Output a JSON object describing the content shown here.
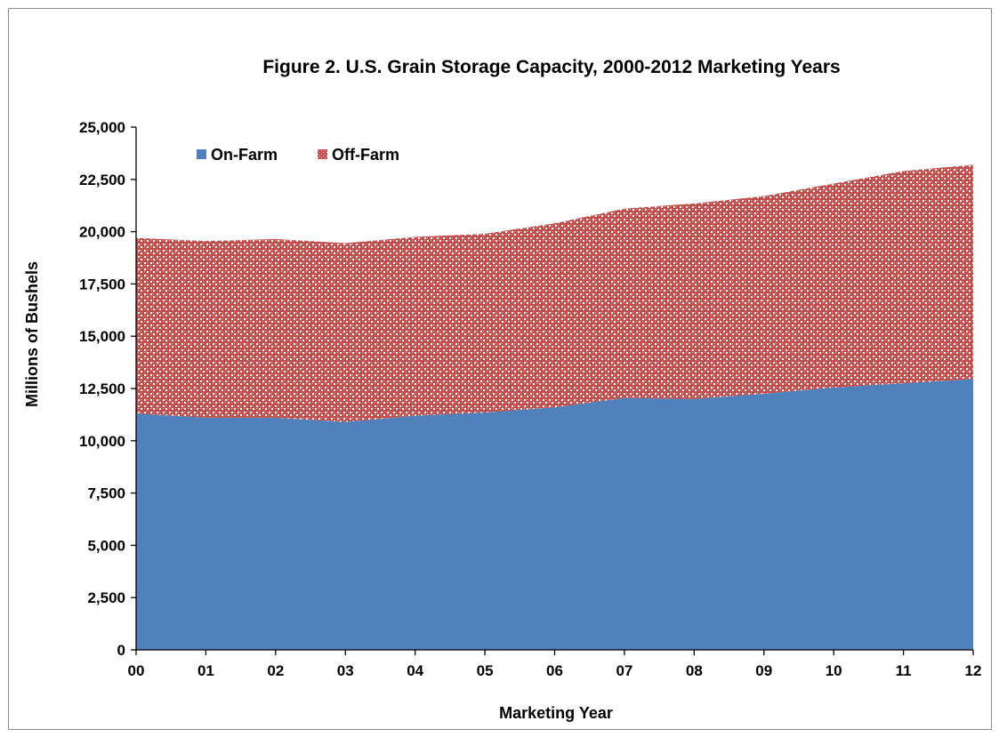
{
  "chart_data": {
    "type": "area",
    "stacked": true,
    "title": "Figure 2. U.S. Grain Storage Capacity, 2000-2012 Marketing Years",
    "xlabel": "Marketing Year",
    "ylabel": "Millions of Bushels",
    "categories": [
      "00",
      "01",
      "02",
      "03",
      "04",
      "05",
      "06",
      "07",
      "08",
      "09",
      "10",
      "11",
      "12"
    ],
    "ylim": [
      0,
      25000
    ],
    "yticks": [
      0,
      2500,
      5000,
      7500,
      10000,
      12500,
      15000,
      17500,
      20000,
      22500,
      25000
    ],
    "ytick_labels": [
      "0",
      "2,500",
      "5,000",
      "7,500",
      "10,000",
      "12,500",
      "15,000",
      "17,500",
      "20,000",
      "22,500",
      "25,000"
    ],
    "grid": false,
    "legend_position": "top-left",
    "series": [
      {
        "name": "On-Farm",
        "color": "#4f81bd",
        "pattern": "solid",
        "values": [
          11300,
          11100,
          11100,
          10900,
          11200,
          11350,
          11600,
          12050,
          12000,
          12250,
          12550,
          12750,
          12950
        ]
      },
      {
        "name": "Off-Farm",
        "color": "#c0504d",
        "pattern": "dotted-grid",
        "values": [
          8400,
          8450,
          8550,
          8550,
          8550,
          8550,
          8800,
          9050,
          9350,
          9450,
          9750,
          10150,
          10250
        ]
      }
    ]
  }
}
